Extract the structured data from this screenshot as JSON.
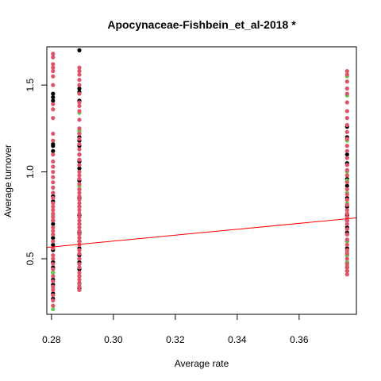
{
  "chart_data": {
    "type": "scatter",
    "title": "Apocynaceae-Fishbein_et_al-2018 *",
    "xlabel": "Average rate",
    "ylabel": "Average turnover",
    "xlim": [
      0.2785,
      0.3785
    ],
    "ylim": [
      0.18,
      1.72
    ],
    "xticks": [
      0.28,
      0.3,
      0.32,
      0.34,
      0.36
    ],
    "xtick_labels": [
      "0.28",
      "0.30",
      "0.32",
      "0.34",
      "0.36"
    ],
    "yticks": [
      0.5,
      1.0,
      1.5
    ],
    "ytick_labels": [
      "0.5",
      "1.0",
      "1.5"
    ],
    "grid": false,
    "legend": "none",
    "colors": {
      "black": "#000000",
      "red": "#DF536B",
      "green": "#61D04F",
      "trend": "#FF0000"
    },
    "columns": [
      {
        "x": 0.2805,
        "black": [
          1.45,
          1.43,
          1.41,
          1.16,
          1.15,
          1.12,
          0.86,
          0.83,
          0.72,
          0.7,
          0.62,
          0.58,
          0.55,
          0.48,
          0.45,
          0.42,
          0.38,
          0.35,
          0.3,
          0.27
        ],
        "red": [
          1.68,
          1.66,
          1.62,
          1.6,
          1.58,
          1.55,
          1.5,
          1.39,
          1.36,
          1.31,
          1.22,
          1.18,
          1.1,
          1.06,
          1.03,
          1.0,
          0.97,
          0.94,
          0.91,
          0.88,
          0.85,
          0.82,
          0.8,
          0.78,
          0.76,
          0.74,
          0.72,
          0.68,
          0.66,
          0.64,
          0.6,
          0.56,
          0.52,
          0.5,
          0.47,
          0.44,
          0.4,
          0.37,
          0.34,
          0.32,
          0.29,
          0.26,
          0.23
        ],
        "green": [
          0.88,
          0.75,
          0.64,
          0.42,
          0.33,
          0.23,
          0.21
        ]
      },
      {
        "x": 0.289,
        "black": [
          1.7,
          1.48,
          1.46,
          1.41,
          1.2,
          1.18,
          1.15,
          1.1,
          1.06,
          1.02,
          0.95,
          0.9,
          0.85,
          0.8,
          0.75,
          0.7,
          0.65,
          0.6,
          0.56,
          0.52,
          0.48,
          0.44,
          0.4,
          0.36,
          0.33
        ],
        "red": [
          1.6,
          1.58,
          1.56,
          1.53,
          1.5,
          1.45,
          1.4,
          1.38,
          1.35,
          1.3,
          1.25,
          1.22,
          1.19,
          1.16,
          1.13,
          1.1,
          1.07,
          1.04,
          1.0,
          0.98,
          0.96,
          0.93,
          0.9,
          0.88,
          0.86,
          0.84,
          0.82,
          0.8,
          0.78,
          0.76,
          0.74,
          0.72,
          0.7,
          0.68,
          0.66,
          0.64,
          0.62,
          0.6,
          0.58,
          0.55,
          0.53,
          0.5,
          0.47,
          0.45,
          0.42,
          0.4,
          0.38,
          0.36,
          0.34,
          0.32
        ],
        "green": [
          1.34,
          1.25,
          1.24,
          1.23,
          1.22,
          1.0,
          0.92,
          0.62,
          0.55,
          0.5,
          0.45,
          0.4,
          0.35
        ]
      },
      {
        "x": 0.3755,
        "black": [
          1.26,
          1.2,
          1.1,
          1.05,
          0.96,
          0.92,
          0.85,
          0.8,
          0.75,
          0.72,
          0.68,
          0.65,
          0.6,
          0.56,
          0.52,
          0.48,
          0.45,
          0.43
        ],
        "red": [
          1.58,
          1.56,
          1.52,
          1.48,
          1.45,
          1.4,
          1.35,
          1.31,
          1.27,
          1.23,
          1.19,
          1.15,
          1.12,
          1.08,
          1.04,
          1.01,
          0.98,
          0.94,
          0.9,
          0.87,
          0.84,
          0.81,
          0.78,
          0.76,
          0.74,
          0.72,
          0.7,
          0.67,
          0.64,
          0.61,
          0.58,
          0.55,
          0.53,
          0.5,
          0.47,
          0.45,
          0.43,
          0.41
        ],
        "green": [
          1.55,
          1.44,
          1.18,
          1.0,
          0.98,
          0.95,
          0.88,
          0.82,
          0.64,
          0.6,
          0.54,
          0.52,
          0.48,
          0.46
        ]
      }
    ],
    "trend_line": {
      "x": [
        0.2785,
        0.3785
      ],
      "y": [
        0.565,
        0.735
      ]
    }
  }
}
